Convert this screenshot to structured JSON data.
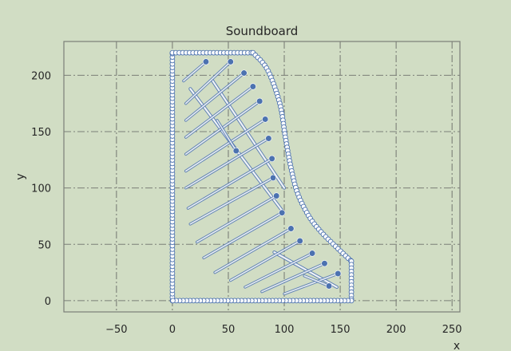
{
  "chart_data": {
    "type": "scatter",
    "title": "Soundboard",
    "xlabel": "x",
    "ylabel": "y",
    "xlim": [
      -97,
      257
    ],
    "ylim": [
      -10,
      230
    ],
    "xticks": [
      -50,
      0,
      50,
      100,
      150,
      200,
      250
    ],
    "yticks": [
      0,
      50,
      100,
      150,
      200
    ],
    "grid": true,
    "colors": {
      "background": "#d1ddc4",
      "grid": "#7b7f77",
      "frame": "#7b7f77",
      "outline_marker_edge": "#4c72b0",
      "outline_marker_fill": "#ffffff",
      "strut_dot": "#4c72b0",
      "strut_line": "#4c72b0"
    },
    "outline": {
      "left_edge": [
        [
          0,
          0
        ],
        [
          0,
          220
        ]
      ],
      "top_edge": [
        [
          0,
          220
        ],
        [
          72,
          220
        ]
      ],
      "curved_edge": [
        [
          72,
          220
        ],
        [
          85,
          205
        ],
        [
          96,
          175
        ],
        [
          101,
          145
        ],
        [
          106,
          118
        ],
        [
          112,
          95
        ],
        [
          122,
          75
        ],
        [
          132,
          62
        ],
        [
          145,
          49
        ],
        [
          160,
          35
        ]
      ],
      "right_edge": [
        [
          160,
          35
        ],
        [
          160,
          0
        ]
      ],
      "bottom_edge": [
        [
          160,
          0
        ],
        [
          0,
          0
        ]
      ]
    },
    "diagonal_bars": [
      {
        "from": [
          16,
          188
        ],
        "to": [
          98,
          80
        ]
      },
      {
        "from": [
          36,
          195
        ],
        "to": [
          100,
          100
        ]
      },
      {
        "from": [
          91,
          43
        ],
        "to": [
          147,
          12
        ]
      }
    ],
    "struts": [
      {
        "tip": [
          30,
          212
        ],
        "tail": [
          10,
          195
        ]
      },
      {
        "tip": [
          52,
          212
        ],
        "tail": [
          12,
          175
        ]
      },
      {
        "tip": [
          64,
          202
        ],
        "tail": [
          12,
          160
        ]
      },
      {
        "tip": [
          72,
          190
        ],
        "tail": [
          12,
          145
        ]
      },
      {
        "tip": [
          78,
          177
        ],
        "tail": [
          12,
          130
        ]
      },
      {
        "tip": [
          83,
          161
        ],
        "tail": [
          12,
          115
        ]
      },
      {
        "tip": [
          86,
          144
        ],
        "tail": [
          12,
          100
        ]
      },
      {
        "tip": [
          89,
          126
        ],
        "tail": [
          14,
          82
        ]
      },
      {
        "tip": [
          90,
          109
        ],
        "tail": [
          16,
          68
        ]
      },
      {
        "tip": [
          93,
          93
        ],
        "tail": [
          22,
          52
        ]
      },
      {
        "tip": [
          98,
          78
        ],
        "tail": [
          28,
          38
        ]
      },
      {
        "tip": [
          106,
          64
        ],
        "tail": [
          38,
          25
        ]
      },
      {
        "tip": [
          114,
          53
        ],
        "tail": [
          52,
          18
        ]
      },
      {
        "tip": [
          125,
          42
        ],
        "tail": [
          65,
          12
        ]
      },
      {
        "tip": [
          136,
          33
        ],
        "tail": [
          80,
          8
        ]
      },
      {
        "tip": [
          148,
          24
        ],
        "tail": [
          100,
          6
        ]
      },
      {
        "tip": [
          57,
          133
        ],
        "tail": [
          40,
          160
        ]
      },
      {
        "tip": [
          140,
          13
        ],
        "tail": [
          118,
          22
        ]
      }
    ]
  }
}
